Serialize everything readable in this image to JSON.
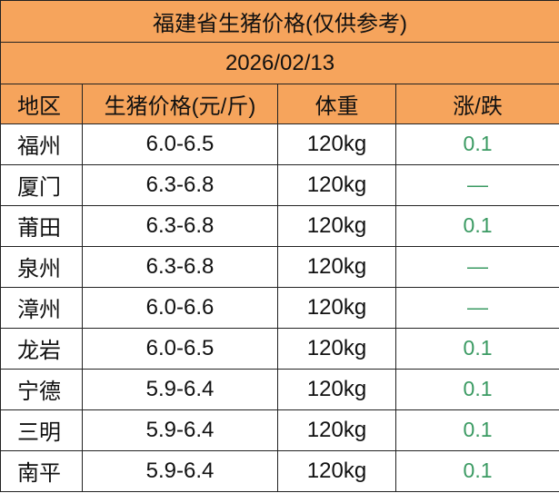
{
  "table": {
    "title": "福建省生猪价格(仅供参考)",
    "date": "2026/02/13",
    "header": [
      "地区",
      "生猪价格(元/斤)",
      "体重",
      "涨/跌"
    ],
    "rows": [
      [
        "福州",
        "6.0-6.5",
        "120kg",
        "0.1"
      ],
      [
        "厦门",
        "6.3-6.8",
        "120kg",
        "—"
      ],
      [
        "莆田",
        "6.3-6.8",
        "120kg",
        "0.1"
      ],
      [
        "泉州",
        "6.3-6.8",
        "120kg",
        "—"
      ],
      [
        "漳州",
        "6.0-6.6",
        "120kg",
        "—"
      ],
      [
        "龙岩",
        "6.0-6.5",
        "120kg",
        "0.1"
      ],
      [
        "宁德",
        "5.9-6.4",
        "120kg",
        "0.1"
      ],
      [
        "三明",
        "5.9-6.4",
        "120kg",
        "0.1"
      ],
      [
        "南平",
        "5.9-6.4",
        "120kg",
        "0.1"
      ]
    ]
  }
}
